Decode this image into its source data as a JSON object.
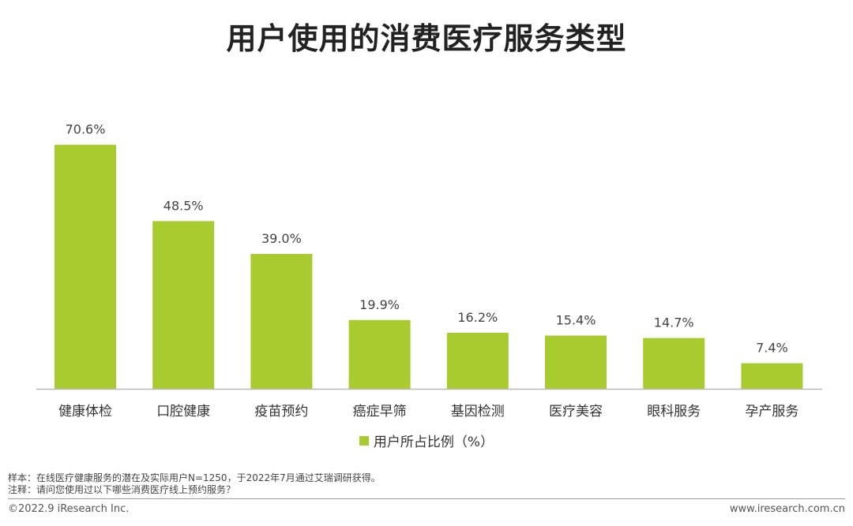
{
  "title": "用户使用的消费医疗服务类型",
  "colors": {
    "bar": "#a8cc2f",
    "axis": "#b8b8b8"
  },
  "chart_data": {
    "type": "bar",
    "title": "用户使用的消费医疗服务类型",
    "categories": [
      "健康体检",
      "口腔健康",
      "疫苗预约",
      "癌症早筛",
      "基因检测",
      "医疗美容",
      "眼科服务",
      "孕产服务"
    ],
    "series": [
      {
        "name": "用户所占比例（%）",
        "values": [
          70.6,
          48.5,
          39.0,
          19.9,
          16.2,
          15.4,
          14.7,
          7.4
        ]
      }
    ],
    "data_labels": [
      "70.6%",
      "48.5%",
      "39.0%",
      "19.9%",
      "16.2%",
      "15.4%",
      "14.7%",
      "7.4%"
    ],
    "ylim": [
      0,
      75
    ],
    "grid": false,
    "legend_position": "bottom"
  },
  "notes": {
    "sample": "样本：在线医疗健康服务的潜在及实际用户N=1250，于2022年7月通过艾瑞调研获得。",
    "annotation": "注释：请问您使用过以下哪些消费医疗线上预约服务？"
  },
  "footer": {
    "copyright": "©2022.9 iResearch Inc.",
    "website": "www.iresearch.com.cn"
  }
}
